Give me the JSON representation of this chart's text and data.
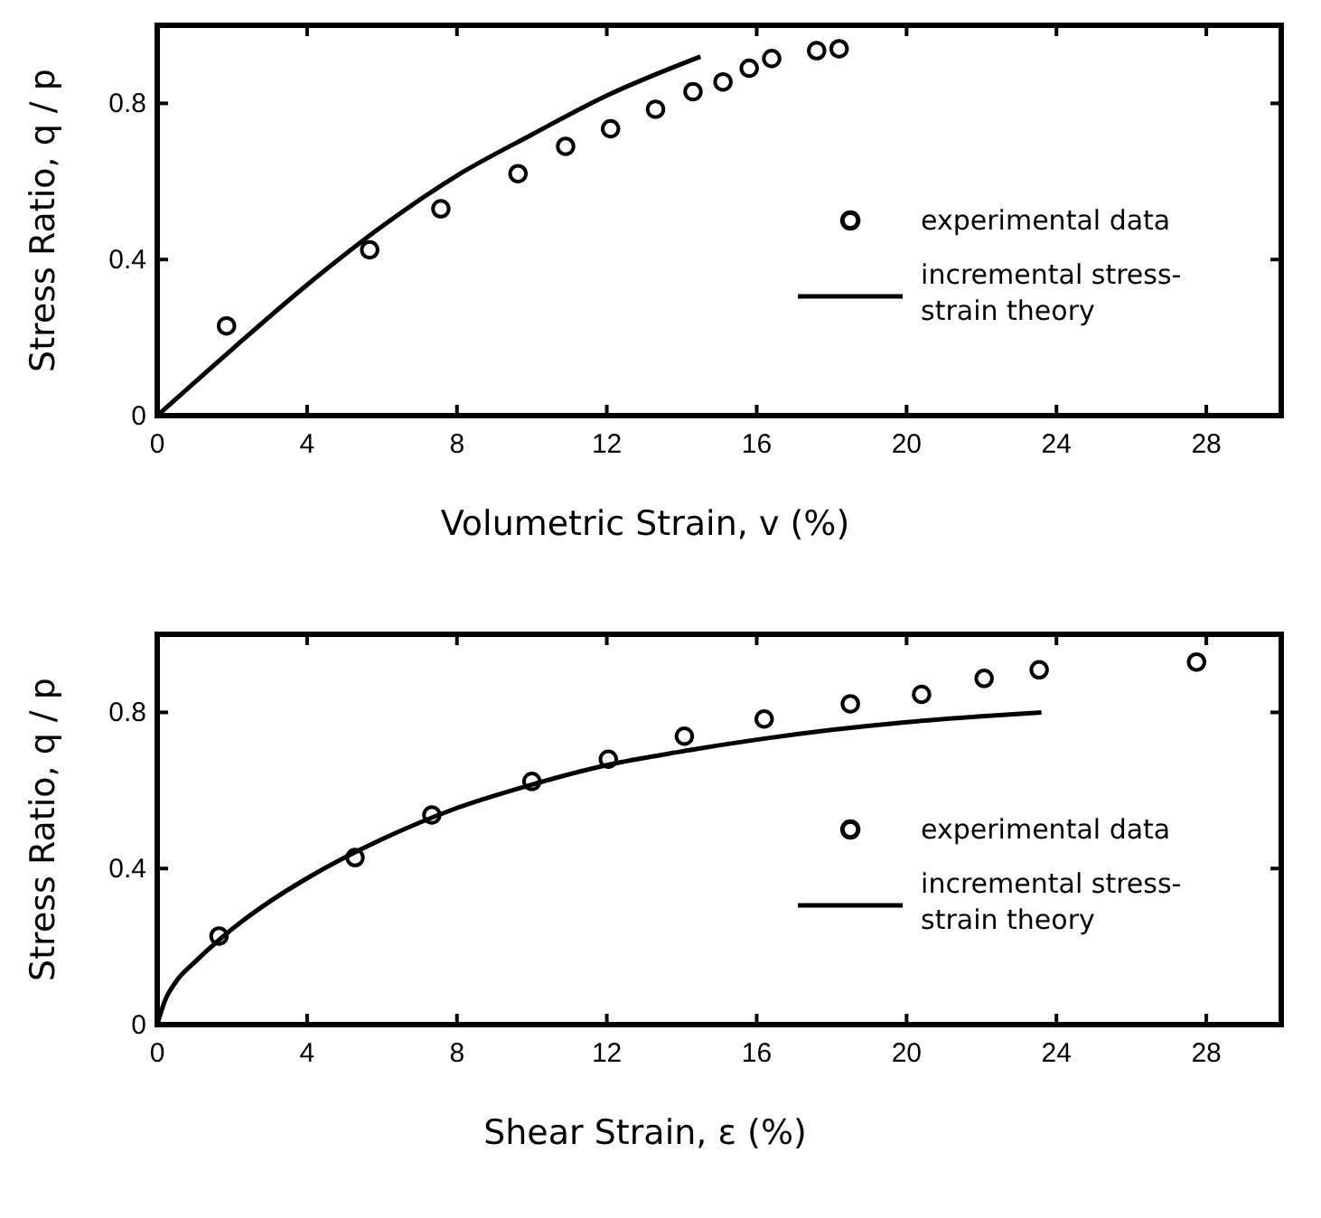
{
  "chart_data": [
    {
      "type": "scatter",
      "xlabel": "Volumetric Strain, v (%)",
      "ylabel": "Stress Ratio, q / p",
      "xlim": [
        0,
        30
      ],
      "ylim": [
        0,
        1.0
      ],
      "xticks": [
        0,
        4,
        8,
        12,
        16,
        20,
        24,
        28
      ],
      "yticks": [
        0,
        0.4,
        0.8
      ],
      "grid": false,
      "legend": "right",
      "series": [
        {
          "name": "experimental data",
          "type": "scatter",
          "marker": "circle",
          "color": "#000000",
          "x": [
            1.85,
            5.67,
            7.57,
            9.63,
            10.9,
            12.1,
            13.3,
            14.3,
            15.1,
            15.8,
            16.4,
            17.6,
            18.2
          ],
          "values": [
            0.23,
            0.425,
            0.53,
            0.62,
            0.69,
            0.735,
            0.785,
            0.83,
            0.855,
            0.89,
            0.915,
            0.935,
            0.94
          ]
        },
        {
          "name": "incremental stress-strain theory",
          "type": "line",
          "line_style": "solid",
          "marker": "none",
          "color": "#000000",
          "x": [
            0,
            2,
            4,
            6,
            8,
            10,
            12,
            14.5
          ],
          "values": [
            0,
            0.17,
            0.335,
            0.485,
            0.615,
            0.72,
            0.82,
            0.92
          ]
        }
      ]
    },
    {
      "type": "scatter",
      "xlabel": "Shear Strain, ε (%)",
      "ylabel": "Stress Ratio, q / p",
      "xlim": [
        0,
        30
      ],
      "ylim": [
        0,
        1.0
      ],
      "xticks": [
        0,
        4,
        8,
        12,
        16,
        20,
        24,
        28
      ],
      "yticks": [
        0,
        0.4,
        0.8
      ],
      "grid": false,
      "legend": "right",
      "series": [
        {
          "name": "experimental data",
          "type": "scatter",
          "marker": "circle",
          "color": "#000000",
          "x": [
            1.65,
            5.28,
            7.33,
            10.0,
            12.04,
            14.07,
            16.2,
            18.5,
            20.4,
            22.07,
            23.54,
            27.74
          ],
          "values": [
            0.227,
            0.428,
            0.537,
            0.623,
            0.68,
            0.739,
            0.783,
            0.822,
            0.846,
            0.887,
            0.909,
            0.929
          ]
        },
        {
          "name": "incremental stress-strain theory",
          "type": "line",
          "line_style": "solid",
          "marker": "none",
          "color": "#000000",
          "x": [
            0,
            0.2,
            0.5,
            1,
            2,
            3,
            4,
            6,
            8,
            10,
            12,
            14,
            16,
            18,
            20,
            22,
            23.6
          ],
          "values": [
            0,
            0.06,
            0.11,
            0.16,
            0.245,
            0.315,
            0.375,
            0.475,
            0.555,
            0.615,
            0.665,
            0.7,
            0.73,
            0.755,
            0.775,
            0.79,
            0.8
          ]
        }
      ]
    }
  ]
}
